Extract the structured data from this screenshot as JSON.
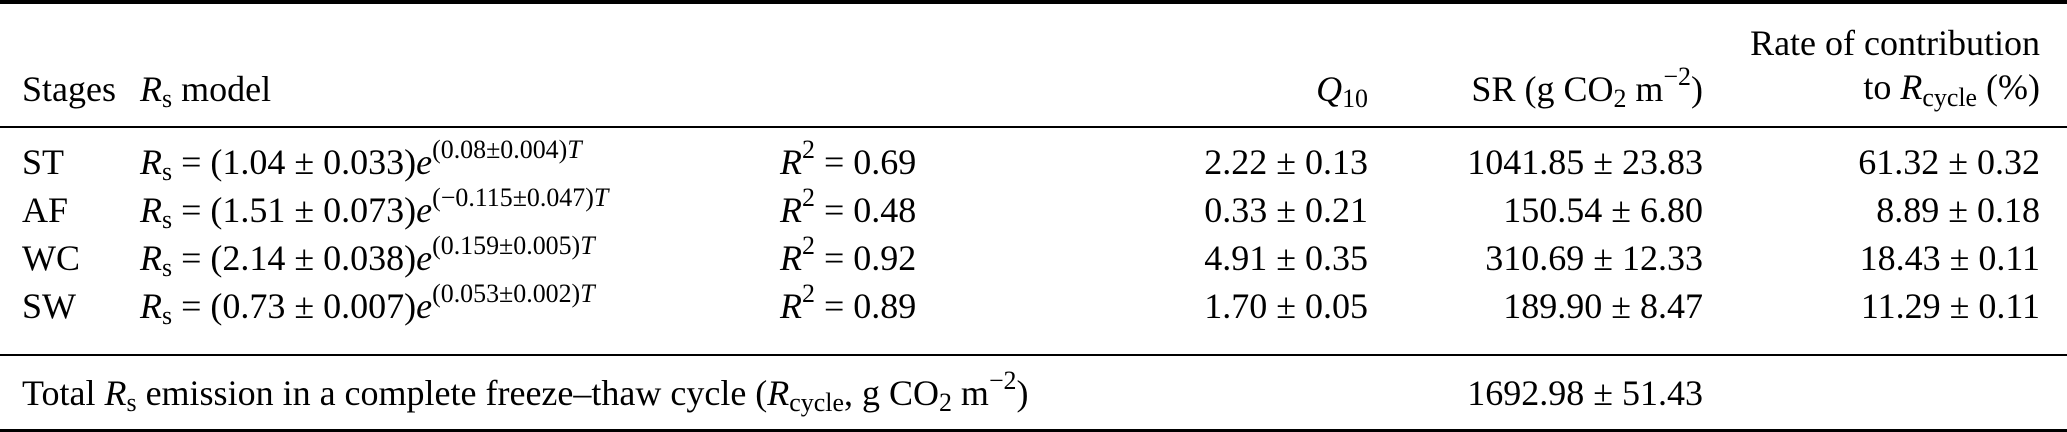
{
  "table": {
    "header": {
      "stages": "Stages",
      "model_suffix": " model",
      "q10_base": "Q",
      "q10_sub": "10",
      "sr_pre": "SR (g CO",
      "sr_sub": "2",
      "sr_mid": " m",
      "sr_sup": "−2",
      "sr_post": ")",
      "rate_line1": "Rate of contribution",
      "rate_line2_pre": "to ",
      "rate_R": "R",
      "rate_sub": "cycle",
      "rate_post": " (%)"
    },
    "math": {
      "R": "R",
      "s": "s",
      "equals": " = ",
      "e": "e",
      "T": "T",
      "two": "2"
    },
    "rows": [
      {
        "stage": "ST",
        "coeff": "(1.04 ± 0.033)",
        "exp": "(0.08±0.004)",
        "r2": "0.69",
        "q10": "2.22 ± 0.13",
        "sr": "1041.85 ± 23.83",
        "rate": "61.32 ± 0.32"
      },
      {
        "stage": "AF",
        "coeff": "(1.51 ± 0.073)",
        "exp": "(−0.115±0.047)",
        "r2": "0.48",
        "q10": "0.33 ± 0.21",
        "sr": "150.54 ± 6.80",
        "rate": "8.89 ± 0.18"
      },
      {
        "stage": "WC",
        "coeff": "(2.14 ± 0.038)",
        "exp": "(0.159±0.005)",
        "r2": "0.92",
        "q10": "4.91 ± 0.35",
        "sr": "310.69 ± 12.33",
        "rate": "18.43 ± 0.11"
      },
      {
        "stage": "SW",
        "coeff": "(0.73 ± 0.007)",
        "exp": "(0.053±0.002)",
        "r2": "0.89",
        "q10": "1.70 ± 0.05",
        "sr": "189.90 ± 8.47",
        "rate": "11.29 ± 0.11"
      }
    ],
    "total": {
      "pre": "Total ",
      "mid1": " emission in a complete freeze–thaw cycle (",
      "cycle_sub": "cycle",
      "mid2": ", g CO",
      "sub2": "2",
      "mid3": " m",
      "sup": "−2",
      "post": ")",
      "value": "1692.98 ± 51.43"
    }
  }
}
